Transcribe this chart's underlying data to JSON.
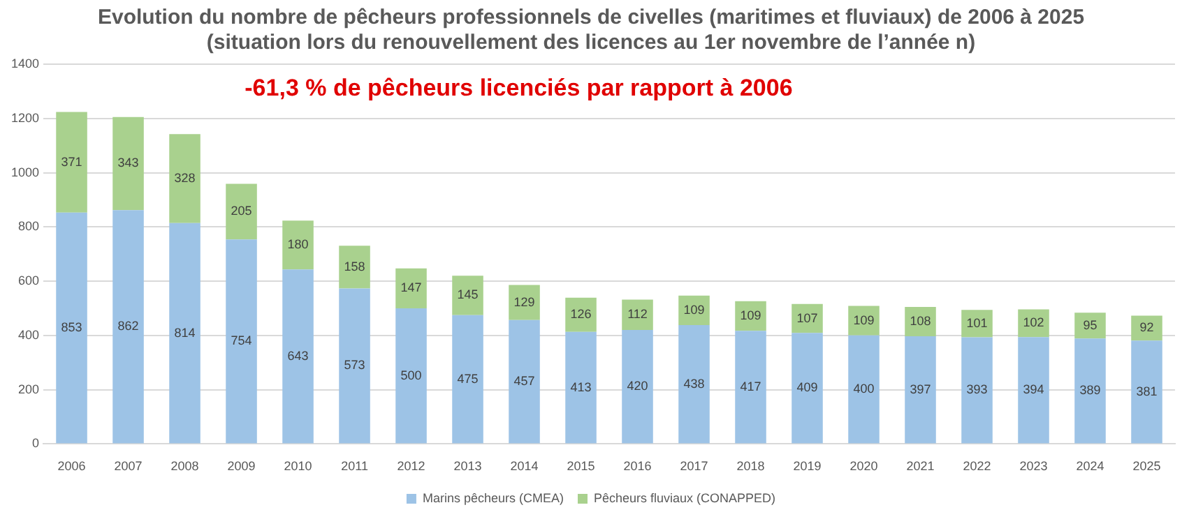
{
  "chart_data": {
    "type": "bar",
    "title": "Evolution du nombre de pêcheurs professionnels de civelles (maritimes et fluviaux) de 2006 à 2025\n(situation lors du renouvellement des licences au 1er novembre de l’année n)",
    "categories": [
      "2006",
      "2007",
      "2008",
      "2009",
      "2010",
      "2011",
      "2012",
      "2013",
      "2014",
      "2015",
      "2016",
      "2017",
      "2018",
      "2019",
      "2020",
      "2021",
      "2022",
      "2023",
      "2024",
      "2025"
    ],
    "stacked": true,
    "series": [
      {
        "name": "Marins pêcheurs (CMEA)",
        "color": "#9dc3e6",
        "values": [
          853,
          862,
          814,
          754,
          643,
          573,
          500,
          475,
          457,
          413,
          420,
          438,
          417,
          409,
          400,
          397,
          393,
          394,
          389,
          381
        ]
      },
      {
        "name": "Pêcheurs fluviaux (CONAPPED)",
        "color": "#a9d18e",
        "values": [
          371,
          343,
          328,
          205,
          180,
          158,
          147,
          145,
          129,
          126,
          112,
          109,
          109,
          107,
          109,
          108,
          101,
          102,
          95,
          92
        ]
      }
    ],
    "ylim": [
      0,
      1400
    ],
    "yticks": [
      0,
      200,
      400,
      600,
      800,
      1000,
      1200,
      1400
    ],
    "grid": "y",
    "legend": "bottom",
    "data_labels": true,
    "annotations": [
      "-61,3 % de pêcheurs licenciés par rapport à 2006"
    ]
  }
}
